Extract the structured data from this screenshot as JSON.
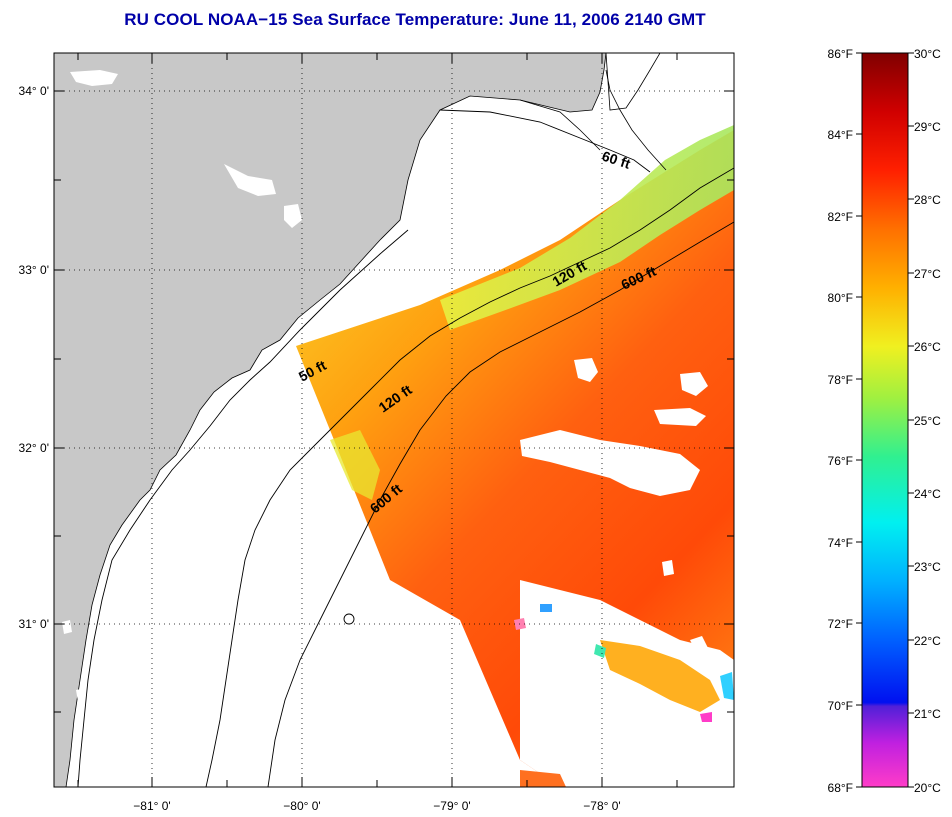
{
  "title": "RU COOL  NOAA−15  Sea Surface Temperature:  June 11, 2006 2140 GMT",
  "map": {
    "lon_ticks": [
      "−81° 0'",
      "−80° 0'",
      "−79° 0'",
      "−78° 0'"
    ],
    "lat_ticks": [
      "34° 0'",
      "33° 0'",
      "32° 0'",
      "31° 0'"
    ],
    "contours": [
      {
        "label": "50 ft"
      },
      {
        "label": "120 ft"
      },
      {
        "label": "600 ft"
      },
      {
        "label": "60 ft"
      },
      {
        "label": "120 ft"
      },
      {
        "label": "600 ft"
      }
    ],
    "land_color": "#c8c8c8",
    "no_data_color": "#ffffff"
  },
  "colorbar": {
    "fahrenheit_labels": [
      "86°F",
      "84°F",
      "82°F",
      "80°F",
      "78°F",
      "76°F",
      "74°F",
      "72°F",
      "70°F",
      "68°F"
    ],
    "celsius_labels": [
      "30°C",
      "29°C",
      "28°C",
      "27°C",
      "26°C",
      "25°C",
      "24°C",
      "23°C",
      "22°C",
      "21°C",
      "20°C"
    ],
    "range_f": [
      68,
      86
    ],
    "range_c": [
      20,
      30
    ]
  }
}
